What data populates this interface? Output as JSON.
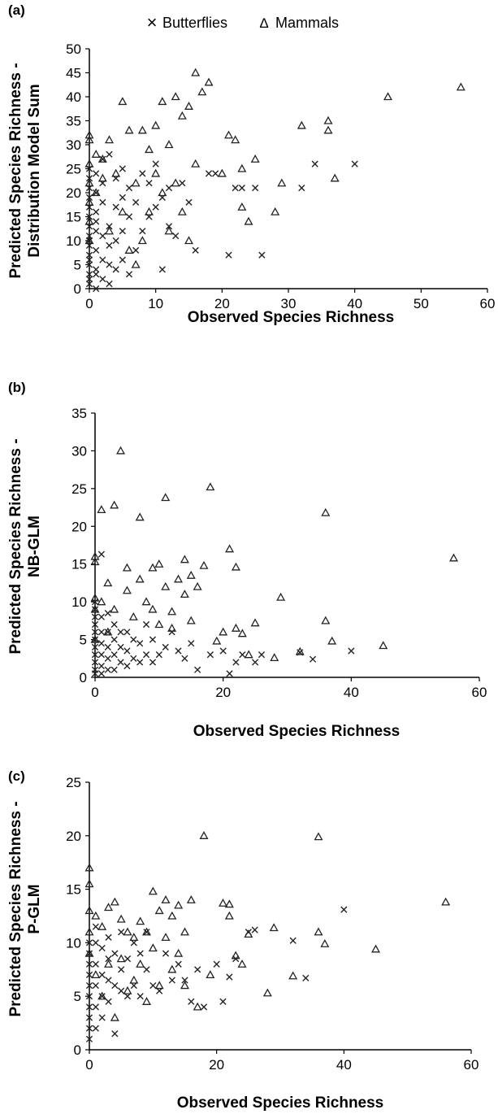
{
  "legend": {
    "items": [
      {
        "name": "Butterflies",
        "symbol": "×"
      },
      {
        "name": "Mammals",
        "symbol": "Δ"
      }
    ]
  },
  "chart_data": [
    {
      "type": "scatter",
      "panel_label": "(a)",
      "xlabel": "Observed Species Richness",
      "ylabel_lines": [
        "Predicted Species Richness -",
        "Distribution Model Sum"
      ],
      "xlim": [
        0,
        60
      ],
      "ylim": [
        0,
        50
      ],
      "xticks": [
        0,
        10,
        20,
        30,
        40,
        50,
        60
      ],
      "yticks": [
        0,
        5,
        10,
        15,
        20,
        25,
        30,
        35,
        40,
        45,
        50
      ],
      "series": [
        {
          "name": "Butterflies",
          "marker": "x",
          "x": [
            0,
            0,
            0,
            0,
            0,
            0,
            0,
            0,
            0,
            0,
            0,
            0,
            0,
            0,
            0,
            0,
            1,
            1,
            1,
            1,
            1,
            1,
            1,
            1,
            1,
            2,
            2,
            2,
            2,
            2,
            2,
            3,
            3,
            3,
            3,
            3,
            4,
            4,
            4,
            4,
            5,
            5,
            5,
            5,
            6,
            6,
            6,
            7,
            7,
            8,
            8,
            9,
            9,
            10,
            10,
            11,
            11,
            12,
            12,
            13,
            14,
            15,
            16,
            18,
            19,
            21,
            22,
            23,
            25,
            26,
            32,
            34,
            40
          ],
          "y": [
            1,
            3,
            5,
            7,
            9,
            11,
            13,
            15,
            17,
            19,
            21,
            23,
            25,
            2,
            6,
            10,
            0,
            4,
            8,
            12,
            16,
            20,
            24,
            3,
            14,
            2,
            6,
            11,
            18,
            22,
            27,
            1,
            5,
            9,
            13,
            28,
            4,
            10,
            17,
            23,
            6,
            12,
            19,
            25,
            3,
            15,
            21,
            8,
            18,
            12,
            24,
            15,
            22,
            17,
            26,
            4,
            19,
            13,
            21,
            11,
            22,
            18,
            8,
            24,
            24,
            7,
            21,
            21,
            21,
            7,
            21,
            26,
            26
          ]
        },
        {
          "name": "Mammals",
          "marker": "triangle",
          "x": [
            0,
            0,
            0,
            0,
            0,
            0,
            0,
            1,
            1,
            2,
            2,
            3,
            3,
            4,
            5,
            5,
            6,
            6,
            7,
            7,
            8,
            8,
            9,
            9,
            10,
            10,
            11,
            11,
            12,
            12,
            13,
            13,
            14,
            14,
            15,
            15,
            16,
            16,
            17,
            18,
            20,
            21,
            22,
            23,
            23,
            24,
            25,
            28,
            29,
            32,
            36,
            36,
            37,
            45,
            56
          ],
          "y": [
            31,
            32,
            26,
            22,
            18,
            14,
            10,
            28,
            20,
            23,
            27,
            12,
            31,
            24,
            39,
            16,
            33,
            8,
            22,
            5,
            33,
            10,
            29,
            16,
            34,
            24,
            39,
            20,
            30,
            12,
            40,
            22,
            36,
            16,
            38,
            10,
            45,
            26,
            41,
            43,
            24,
            32,
            31,
            25,
            17,
            14,
            27,
            16,
            22,
            34,
            35,
            33,
            23,
            40,
            42
          ]
        }
      ]
    },
    {
      "type": "scatter",
      "panel_label": "(b)",
      "xlabel": "Observed Species Richness",
      "ylabel_lines": [
        "Predicted Species Richness -",
        "NB-GLM"
      ],
      "xlim": [
        0,
        60
      ],
      "ylim": [
        0,
        35
      ],
      "xticks": [
        0,
        20,
        40,
        60
      ],
      "yticks": [
        0,
        5,
        10,
        15,
        20,
        25,
        30,
        35
      ],
      "series": [
        {
          "name": "Butterflies",
          "marker": "x",
          "x": [
            0,
            0,
            0,
            0,
            0,
            0,
            0,
            0,
            0,
            0,
            0,
            1,
            1,
            1,
            1,
            1,
            1,
            1,
            2,
            2,
            2,
            2,
            2,
            3,
            3,
            3,
            3,
            4,
            4,
            4,
            5,
            5,
            5,
            6,
            6,
            7,
            7,
            8,
            8,
            9,
            9,
            10,
            11,
            12,
            13,
            14,
            15,
            16,
            18,
            20,
            21,
            22,
            23,
            25,
            26,
            32,
            34,
            40
          ],
          "y": [
            0.5,
            1,
            2,
            3,
            4,
            5,
            6,
            7,
            8,
            9,
            10,
            0.5,
            1.5,
            3,
            4.5,
            6,
            8,
            16.3,
            1,
            2.5,
            4,
            6,
            8.5,
            1,
            3,
            5,
            7,
            2,
            4,
            6,
            1.5,
            3.5,
            6,
            2.5,
            5,
            2,
            4.5,
            3,
            7,
            2,
            5,
            3,
            4,
            6,
            3.5,
            2.5,
            4.5,
            1,
            3,
            3.5,
            0.5,
            2,
            3,
            2,
            3,
            3.3,
            2.4,
            3.5
          ]
        },
        {
          "name": "Mammals",
          "marker": "triangle",
          "x": [
            0,
            0,
            0,
            0,
            0,
            1,
            1,
            2,
            2,
            3,
            3,
            4,
            5,
            5,
            6,
            7,
            7,
            8,
            9,
            9,
            10,
            10,
            11,
            11,
            12,
            12,
            13,
            14,
            14,
            15,
            15,
            16,
            17,
            18,
            19,
            20,
            21,
            22,
            22,
            23,
            24,
            25,
            28,
            29,
            32,
            36,
            36,
            37,
            45,
            56
          ],
          "y": [
            16,
            15.3,
            10.5,
            9,
            5,
            22.2,
            10,
            12.5,
            6,
            22.8,
            9,
            30,
            14.5,
            11.5,
            8,
            21.2,
            13,
            10,
            14.5,
            9,
            15,
            7,
            23.8,
            12,
            8.7,
            6.5,
            13,
            15.6,
            11,
            13.5,
            7.5,
            12,
            14.8,
            25.2,
            4.8,
            6,
            17,
            14.6,
            6.5,
            5.8,
            3,
            7.2,
            2.6,
            10.6,
            3.4,
            21.8,
            7.5,
            4.8,
            4.2,
            15.8
          ]
        }
      ]
    },
    {
      "type": "scatter",
      "panel_label": "(c)",
      "xlabel": "Observed Species Richness",
      "ylabel_lines": [
        "Predicted Species Richness -",
        "P-GLM"
      ],
      "xlim": [
        0,
        60
      ],
      "ylim": [
        0,
        25
      ],
      "xticks": [
        0,
        20,
        40,
        60
      ],
      "yticks": [
        0,
        5,
        10,
        15,
        20,
        25
      ],
      "series": [
        {
          "name": "Butterflies",
          "marker": "x",
          "x": [
            0,
            0,
            0,
            0,
            0,
            0,
            0,
            0,
            0,
            0,
            1,
            1,
            1,
            1,
            1,
            1,
            2,
            2,
            2,
            2,
            3,
            3,
            3,
            3,
            4,
            4,
            4,
            5,
            5,
            5,
            6,
            6,
            7,
            7,
            8,
            8,
            9,
            9,
            10,
            11,
            12,
            13,
            14,
            15,
            16,
            17,
            18,
            20,
            21,
            22,
            23,
            25,
            26,
            32,
            34,
            40
          ],
          "y": [
            1,
            2,
            3,
            4,
            5,
            6,
            7,
            8,
            9,
            10,
            2,
            4,
            6,
            8,
            10,
            11.5,
            3,
            5,
            7,
            9.5,
            4.5,
            6.5,
            8.5,
            10.5,
            1.5,
            6,
            9,
            5.5,
            7.5,
            11,
            5,
            8.5,
            6,
            10,
            5,
            9,
            7.5,
            11,
            6,
            5.5,
            9,
            6.5,
            8,
            6.5,
            4.5,
            7.5,
            4,
            8,
            4.5,
            6.8,
            8.5,
            11,
            11.2,
            10.2,
            6.7,
            13.1
          ]
        },
        {
          "name": "Mammals",
          "marker": "triangle",
          "x": [
            0,
            0,
            0,
            0,
            0,
            1,
            1,
            2,
            2,
            3,
            3,
            4,
            4,
            5,
            5,
            6,
            6,
            7,
            7,
            8,
            8,
            9,
            9,
            10,
            10,
            11,
            11,
            12,
            12,
            13,
            13,
            14,
            14,
            15,
            15,
            16,
            17,
            18,
            19,
            21,
            22,
            22,
            23,
            24,
            25,
            28,
            29,
            32,
            36,
            36,
            37,
            45,
            56
          ],
          "y": [
            17,
            15.5,
            13,
            11,
            9,
            12.5,
            7,
            11.5,
            5,
            13.3,
            8,
            13.8,
            3,
            12.2,
            8.5,
            11,
            5.5,
            10.5,
            6.5,
            12,
            8,
            11,
            4.5,
            14.8,
            9.5,
            13,
            6,
            14,
            10.5,
            12.5,
            7.5,
            13.5,
            9,
            11,
            6,
            14,
            4,
            20,
            7,
            13.7,
            13.6,
            12.5,
            8.8,
            8,
            10.8,
            5.3,
            11.4,
            6.9,
            19.9,
            11,
            9.9,
            9.4,
            13.8
          ]
        }
      ]
    }
  ]
}
